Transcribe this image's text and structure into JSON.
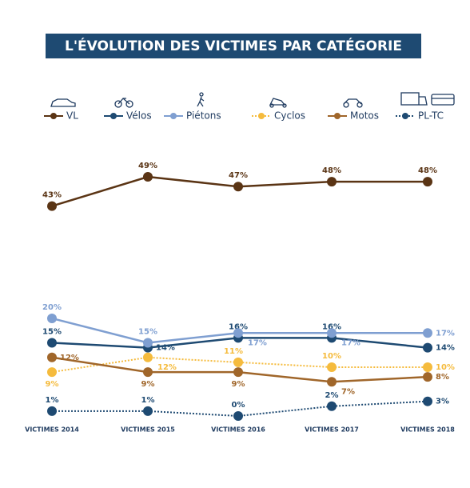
{
  "chart_data": {
    "type": "line",
    "title": "L'ÉVOLUTION DES VICTIMES PAR CATÉGORIE",
    "categories": [
      "VICTIMES 2014",
      "VICTIMES 2015",
      "VICTIMES 2016",
      "VICTIMES 2017",
      "VICTIMES 2018"
    ],
    "series": [
      {
        "name": "VL",
        "color": "#5a3414",
        "style": "solid",
        "values": [
          43,
          49,
          47,
          48,
          48
        ],
        "value_labels": [
          "43%",
          "49%",
          "47%",
          "48%",
          "48%"
        ]
      },
      {
        "name": "Vélos",
        "color": "#1e4a72",
        "style": "solid",
        "values": [
          15,
          14,
          16,
          16,
          14
        ],
        "value_labels": [
          "15%",
          "14%",
          "16%",
          "16%",
          "14%"
        ]
      },
      {
        "name": "Piétons",
        "color": "#7f9fd1",
        "style": "solid",
        "values": [
          20,
          15,
          17,
          17,
          17
        ],
        "value_labels": [
          "20%",
          "15%",
          "17%",
          "17%",
          "17%"
        ]
      },
      {
        "name": "Cyclos",
        "color": "#f5bb3d",
        "style": "dotted",
        "values": [
          9,
          12,
          11,
          10,
          10
        ],
        "value_labels": [
          "9%",
          "12%",
          "11%",
          "10%",
          "10%"
        ]
      },
      {
        "name": "Motos",
        "color": "#a0662a",
        "style": "solid",
        "values": [
          12,
          9,
          9,
          7,
          8
        ],
        "value_labels": [
          "12%",
          "9%",
          "9%",
          "7%",
          "8%"
        ]
      },
      {
        "name": "PL-TC",
        "color": "#1e4a72",
        "style": "dotted",
        "values": [
          1,
          1,
          0,
          2,
          3
        ],
        "value_labels": [
          "1%",
          "1%",
          "0%",
          "2%",
          "3%"
        ]
      }
    ]
  }
}
